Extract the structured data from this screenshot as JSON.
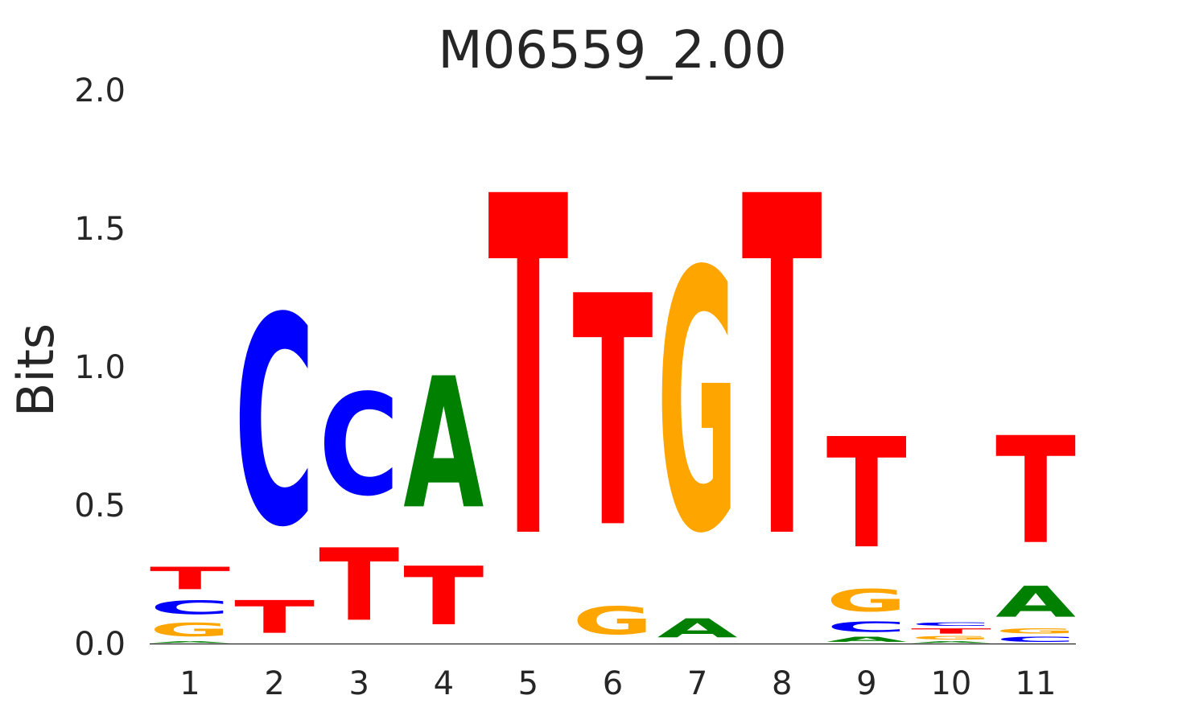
{
  "chart_data": {
    "type": "sequence-logo",
    "title": "M06559_2.00",
    "ylabel": "Bits",
    "ylim": [
      0,
      2
    ],
    "yticks": [
      "0.0",
      "0.5",
      "1.0",
      "1.5",
      "2.0"
    ],
    "colors": {
      "A": "#008000",
      "C": "#0000ff",
      "G": "#ffa500",
      "T": "#ff0000"
    },
    "positions": [
      {
        "label": "1",
        "letters": [
          [
            "A",
            0.01
          ],
          [
            "G",
            0.08
          ],
          [
            "C",
            0.08
          ],
          [
            "T",
            0.13
          ]
        ]
      },
      {
        "label": "2",
        "letters": [
          [
            "T",
            0.19
          ],
          [
            "C",
            1.21
          ]
        ]
      },
      {
        "label": "3",
        "letters": [
          [
            "T",
            0.42
          ],
          [
            "C",
            0.59
          ]
        ]
      },
      {
        "label": "4",
        "letters": [
          [
            "T",
            0.34
          ],
          [
            "A",
            0.76
          ]
        ]
      },
      {
        "label": "5",
        "letters": [
          [
            "T",
            1.97
          ]
        ]
      },
      {
        "label": "6",
        "letters": [
          [
            "G",
            0.16
          ],
          [
            "T",
            1.34
          ]
        ]
      },
      {
        "label": "7",
        "letters": [
          [
            "A",
            0.11
          ],
          [
            "G",
            1.51
          ]
        ]
      },
      {
        "label": "8",
        "letters": [
          [
            "T",
            1.97
          ]
        ]
      },
      {
        "label": "9",
        "letters": [
          [
            "A",
            0.03
          ],
          [
            "C",
            0.06
          ],
          [
            "G",
            0.13
          ],
          [
            "T",
            0.64
          ]
        ]
      },
      {
        "label": "10",
        "letters": [
          [
            "A",
            0.01
          ],
          [
            "G",
            0.02
          ],
          [
            "T",
            0.03
          ],
          [
            "C",
            0.02
          ]
        ]
      },
      {
        "label": "11",
        "letters": [
          [
            "C",
            0.03
          ],
          [
            "G",
            0.03
          ],
          [
            "A",
            0.18
          ],
          [
            "T",
            0.62
          ]
        ]
      }
    ]
  }
}
